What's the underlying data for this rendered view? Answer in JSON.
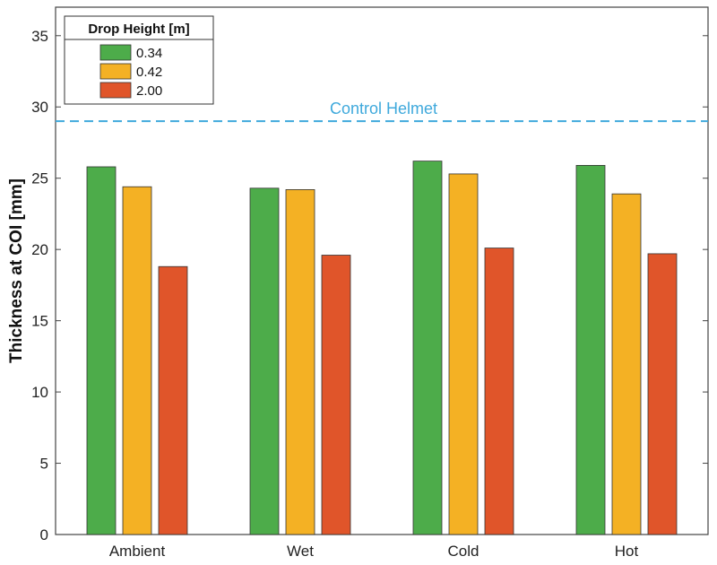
{
  "chart_data": {
    "type": "bar",
    "ylabel": "Thickness at COI [mm]",
    "xlabel": "",
    "ylim": [
      0,
      37
    ],
    "yticks": [
      0,
      5,
      10,
      15,
      20,
      25,
      30,
      35
    ],
    "categories": [
      "Ambient",
      "Wet",
      "Cold",
      "Hot"
    ],
    "series": [
      {
        "name": "0.34",
        "color": "#4dac4a",
        "values": [
          25.8,
          24.3,
          26.2,
          25.9
        ]
      },
      {
        "name": "0.42",
        "color": "#f4b124",
        "values": [
          24.4,
          24.2,
          25.3,
          23.9
        ]
      },
      {
        "name": "2.00",
        "color": "#e0552a",
        "values": [
          18.8,
          19.6,
          20.1,
          19.7
        ]
      }
    ],
    "legend": {
      "title": "Drop Height [m]",
      "placement": "top-left"
    },
    "reference_line": {
      "label": "Control Helmet",
      "value": 29.0,
      "color": "#3fa9dc",
      "style": "dashed"
    },
    "grid": false
  }
}
